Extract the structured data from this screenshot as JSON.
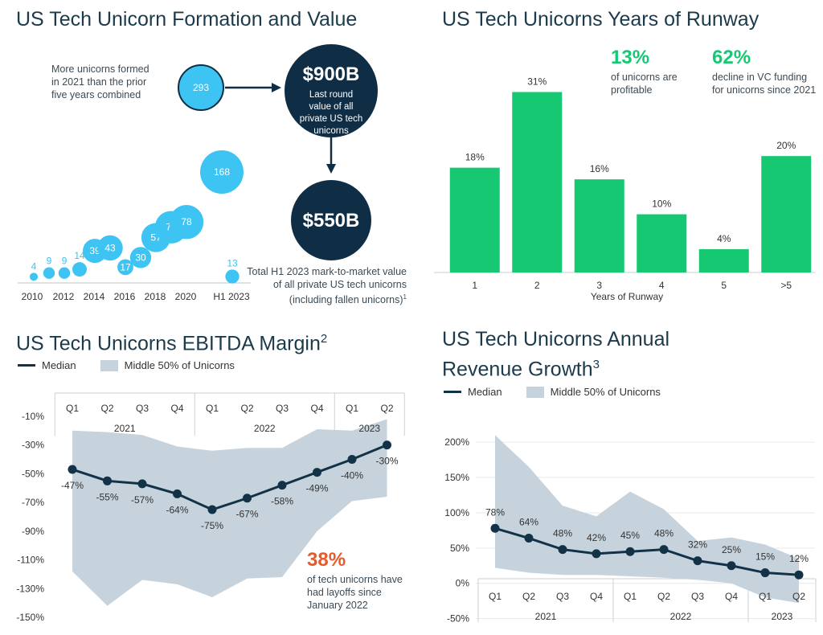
{
  "formation": {
    "title": "US Tech Unicorn Formation and Value",
    "note": "More unicorns formed in 2021 than the prior five years combined",
    "value_900_big": "$900B",
    "value_900_text": "Last round value of all private US tech unicorns",
    "value_550_big": "$550B",
    "value_550_text": "Total H1 2023 mark-to-market value of all private US tech unicorns (including fallen unicorns)",
    "value_550_sup": "1",
    "colors": {
      "bubble": "#3dc4f2",
      "dark": "#0f2e45"
    }
  },
  "runway": {
    "title": "US Tech Unicorns Years of Runway",
    "stat1_value": "13%",
    "stat1_text": "of unicorns are profitable",
    "stat2_value": "62%",
    "stat2_text": "decline in VC funding for unicorns since 2021",
    "colors": {
      "bar": "#16c872",
      "stat": "#16c872"
    }
  },
  "ebitda": {
    "title": "US Tech Unicorns EBITDA Margin",
    "title_sup": "2",
    "legend_median": "Median",
    "legend_band": "Middle 50% of Unicorns",
    "callout_value": "38%",
    "callout_text": "of tech unicorns have had layoffs since January 2022",
    "colors": {
      "line": "#123247",
      "band": "#c6d3dd",
      "callout": "#e85a2a"
    }
  },
  "revenue": {
    "title_line1": "US Tech Unicorns Annual",
    "title_line2": "Revenue Growth",
    "title_sup": "3",
    "legend_median": "Median",
    "legend_band": "Middle 50% of Unicorns"
  },
  "chart_data": [
    {
      "type": "scatter",
      "title": "US Tech Unicorn Formation and Value",
      "x": [
        "2010",
        "2011",
        "2012",
        "2013",
        "2014",
        "2015",
        "2016",
        "2017",
        "2018",
        "2019",
        "2020",
        "2021",
        "2022",
        "H1 2023"
      ],
      "values": [
        4,
        9,
        9,
        14,
        39,
        43,
        17,
        30,
        57,
        71,
        78,
        293,
        168,
        13
      ],
      "tick_labels": [
        "2010",
        "2012",
        "2014",
        "2016",
        "2018",
        "2020",
        "H1 2023"
      ]
    },
    {
      "type": "bar",
      "title": "US Tech Unicorns Years of Runway",
      "categories": [
        "1",
        "2",
        "3",
        "4",
        "5",
        ">5"
      ],
      "values": [
        18,
        31,
        16,
        10,
        4,
        20
      ],
      "labels": [
        "18%",
        "31%",
        "16%",
        "10%",
        "4%",
        "20%"
      ],
      "xlabel": "Years of Runway",
      "ylim": [
        0,
        33
      ]
    },
    {
      "type": "line",
      "title": "US Tech Unicorns EBITDA Margin",
      "categories": [
        "Q1",
        "Q2",
        "Q3",
        "Q4",
        "Q1",
        "Q2",
        "Q3",
        "Q4",
        "Q1",
        "Q2"
      ],
      "years": [
        {
          "label": "2021",
          "span": 4
        },
        {
          "label": "2022",
          "span": 4
        },
        {
          "label": "2023",
          "span": 2
        }
      ],
      "series": [
        {
          "name": "Median",
          "values": [
            -47,
            -55,
            -57,
            -64,
            -75,
            -67,
            -58,
            -49,
            -40,
            -30
          ],
          "labels": [
            "-47%",
            "-55%",
            "-57%",
            "-64%",
            "-75%",
            "-67%",
            "-58%",
            "-49%",
            "-40%",
            "-30%"
          ]
        },
        {
          "name": "Middle 50% of Unicorns",
          "upper": [
            -20,
            -21,
            -23,
            -31,
            -34,
            -32,
            -32,
            -19,
            -20,
            -12
          ],
          "lower": [
            -118,
            -142,
            -124,
            -127,
            -136,
            -123,
            -122,
            -90,
            -69,
            -66
          ]
        }
      ],
      "yticks": [
        -10,
        -30,
        -50,
        -70,
        -90,
        -110,
        -130,
        -150
      ],
      "ytick_labels": [
        "-10%",
        "-30%",
        "-50%",
        "-70%",
        "-90%",
        "-110%",
        "-130%",
        "-150%"
      ],
      "ylim": [
        -150,
        -5
      ]
    },
    {
      "type": "line",
      "title": "US Tech Unicorns Annual Revenue Growth",
      "categories": [
        "Q1",
        "Q2",
        "Q3",
        "Q4",
        "Q1",
        "Q2",
        "Q3",
        "Q4",
        "Q1",
        "Q2"
      ],
      "years": [
        {
          "label": "2021",
          "span": 4
        },
        {
          "label": "2022",
          "span": 4
        },
        {
          "label": "2023",
          "span": 2
        }
      ],
      "series": [
        {
          "name": "Median",
          "values": [
            78,
            64,
            48,
            42,
            45,
            48,
            32,
            25,
            15,
            12
          ],
          "labels": [
            "78%",
            "64%",
            "48%",
            "42%",
            "45%",
            "48%",
            "32%",
            "25%",
            "15%",
            "12%"
          ]
        },
        {
          "name": "Middle 50% of Unicorns",
          "upper": [
            210,
            165,
            110,
            95,
            130,
            105,
            60,
            65,
            55,
            35
          ],
          "lower": [
            22,
            15,
            12,
            12,
            10,
            8,
            5,
            0,
            -20,
            -28
          ]
        }
      ],
      "yticks": [
        200,
        150,
        100,
        50,
        0,
        -50
      ],
      "ytick_labels": [
        "200%",
        "150%",
        "100%",
        "50%",
        "0%",
        "-50%"
      ],
      "ylim": [
        -55,
        215
      ]
    }
  ]
}
